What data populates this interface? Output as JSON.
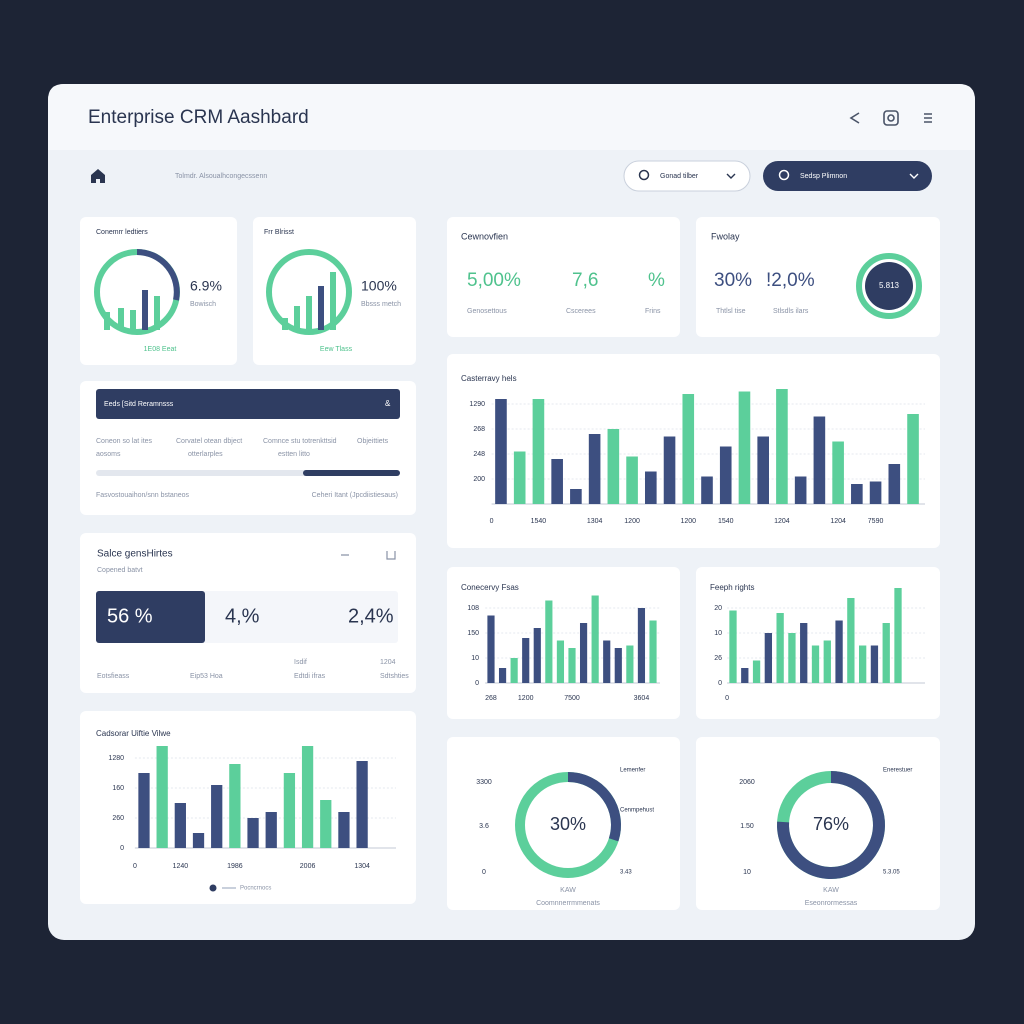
{
  "header": {
    "title": "Enterprise CRM Aashbard"
  },
  "toolbar": {
    "breadcrumb": "Tolmdr. Alsoualhcongecssenn",
    "filter": "Gonad tilber",
    "search": "Sedsp Plimnon"
  },
  "gauge_left": {
    "title": "Conemrr ledtiers",
    "value": "6.9%",
    "caption": "Bowisch",
    "footer": "1E08 Eeat"
  },
  "gauge_right": {
    "title": "Frr Blrisst",
    "value": "100%",
    "caption": "Bbsss metch",
    "footer": "Eew Tlass"
  },
  "task_panel": {
    "header": "Eeds [Sitd Reramnsss",
    "symbol": "&",
    "columns": [
      [
        "Coneon so lat ites",
        "aosoms"
      ],
      [
        "Corvatel otean dbject",
        "otterlarples"
      ],
      [
        "Comnce stu totrenkttsid",
        "estten litto"
      ],
      [
        "Objeittiets"
      ]
    ],
    "footer": [
      "Fasvostouaihon/snn bstaneos",
      "Ceheri Itant (Jpcdiistiesaus)"
    ]
  },
  "sales_segments": {
    "title": "Salce gensHirtes",
    "subtitle": "Copened batvt",
    "segments": [
      "56 %",
      "4,%",
      "2,4%"
    ],
    "labels": [
      "Eotsfieass",
      "Eip53 Hoa",
      "Isdif",
      "Edtdi ifras",
      "1204",
      "Sdtshties"
    ]
  },
  "overview": {
    "title": "Cewnovfien",
    "values": [
      "5,00%",
      "7,6",
      "%"
    ],
    "labels": [
      "Genosettous",
      "Cscerees",
      "Frins"
    ]
  },
  "weekly": {
    "title": "Fwolay",
    "values": [
      "30%",
      "!2,0%"
    ],
    "labels": [
      "Thtlsl tise",
      "Stlsdls ilars"
    ],
    "badge": "5.813"
  },
  "chart_data": [
    {
      "type": "bar",
      "title": "Cadsorar Uiftie Vilwe",
      "x_start_label": "0",
      "legend_label": "Pocncrnocs",
      "categories": [
        null,
        null,
        "1240",
        null,
        null,
        "1986",
        null,
        null,
        null,
        "2006",
        null,
        null,
        "1304"
      ],
      "values": [
        2.5,
        3.4,
        1.5,
        0.5,
        2.1,
        2.8,
        1.0,
        1.2,
        2.5,
        3.4,
        1.6,
        1.2,
        2.9
      ],
      "colors": [
        "#3d4f80",
        "#5ccf9b",
        "#3d4f80",
        "#3d4f80",
        "#3d4f80",
        "#5ccf9b",
        "#3d4f80",
        "#3d4f80",
        "#5ccf9b",
        "#5ccf9b",
        "#5ccf9b",
        "#3d4f80",
        "#3d4f80"
      ],
      "ylim": [
        0,
        3.5
      ],
      "yticks": [
        0,
        {
          "value": 1,
          "label": "260"
        },
        {
          "value": 2,
          "label": "160"
        },
        {
          "value": 3,
          "label": "1280"
        }
      ],
      "grid": true
    },
    {
      "type": "bar",
      "title": "Casterravy hels",
      "x_start_label": "0",
      "categories": [
        null,
        null,
        "1540",
        null,
        null,
        "1304",
        null,
        "1200",
        null,
        null,
        "1200",
        null,
        "1540",
        null,
        null,
        "1204",
        null,
        null,
        "1204",
        null,
        "7590",
        null,
        null
      ],
      "values": [
        4.2,
        2.1,
        4.2,
        1.8,
        0.6,
        2.8,
        3.0,
        1.9,
        1.3,
        2.7,
        4.4,
        1.1,
        2.3,
        4.5,
        2.7,
        4.6,
        1.1,
        3.5,
        2.5,
        0.8,
        0.9,
        1.6,
        3.6
      ],
      "colors": [
        "#3d4f80",
        "#5ccf9b",
        "#5ccf9b",
        "#3d4f80",
        "#3d4f80",
        "#3d4f80",
        "#5ccf9b",
        "#5ccf9b",
        "#3d4f80",
        "#3d4f80",
        "#5ccf9b",
        "#3d4f80",
        "#3d4f80",
        "#5ccf9b",
        "#3d4f80",
        "#5ccf9b",
        "#3d4f80",
        "#3d4f80",
        "#5ccf9b",
        "#3d4f80",
        "#3d4f80",
        "#3d4f80",
        "#5ccf9b"
      ],
      "ylim": [
        0,
        4.7
      ],
      "yticks": [
        {
          "value": 1,
          "label": "200"
        },
        {
          "value": 2,
          "label": "248"
        },
        {
          "value": 3,
          "label": "268"
        },
        {
          "value": 4,
          "label": "1290"
        }
      ],
      "grid": true
    },
    {
      "type": "bar",
      "title": "Conecervy Fsas",
      "categories": [
        "268",
        null,
        null,
        "1200",
        null,
        null,
        null,
        "7500",
        null,
        null,
        null,
        null,
        null,
        "3604",
        null
      ],
      "values": [
        2.7,
        0.6,
        1.0,
        1.8,
        2.2,
        3.3,
        1.7,
        1.4,
        2.4,
        3.5,
        1.7,
        1.4,
        1.5,
        3.0,
        2.5
      ],
      "colors": [
        "#3d4f80",
        "#3d4f80",
        "#5ccf9b",
        "#3d4f80",
        "#3d4f80",
        "#5ccf9b",
        "#5ccf9b",
        "#5ccf9b",
        "#3d4f80",
        "#5ccf9b",
        "#3d4f80",
        "#3d4f80",
        "#5ccf9b",
        "#3d4f80",
        "#5ccf9b"
      ],
      "ylim": [
        0,
        3.6
      ],
      "yticks": [
        0,
        {
          "value": 1,
          "label": "10"
        },
        {
          "value": 2,
          "label": "150"
        },
        {
          "value": 3,
          "label": "108"
        }
      ],
      "grid": true
    },
    {
      "type": "bar",
      "title": "Feeph rights",
      "x_start_label": "0",
      "values": [
        2.9,
        0.6,
        0.9,
        2.0,
        2.8,
        2.0,
        2.4,
        1.5,
        1.7,
        2.5,
        3.4,
        1.5,
        1.5,
        2.4,
        3.8
      ],
      "colors": [
        "#5ccf9b",
        "#3d4f80",
        "#5ccf9b",
        "#3d4f80",
        "#5ccf9b",
        "#5ccf9b",
        "#3d4f80",
        "#5ccf9b",
        "#5ccf9b",
        "#3d4f80",
        "#5ccf9b",
        "#5ccf9b",
        "#3d4f80",
        "#5ccf9b",
        "#5ccf9b"
      ],
      "ylim": [
        0,
        4
      ],
      "yticks": [
        0,
        {
          "value": 1,
          "label": "26"
        },
        {
          "value": 2,
          "label": "10"
        },
        {
          "value": 3,
          "label": "20"
        }
      ],
      "grid": true
    },
    {
      "type": "donut",
      "values": [
        30
      ],
      "value_labels": [
        "30%"
      ],
      "colors": [
        "#3d4f80",
        "#5ccf9b"
      ],
      "left_labels": [
        "3300",
        "3.6",
        "0"
      ],
      "right_labels": [
        "Lemenfer",
        "Cenmpehust",
        "3.43"
      ],
      "footer": [
        "KAW",
        "Coomnnerrmmenats"
      ]
    },
    {
      "type": "donut",
      "values": [
        76
      ],
      "value_labels": [
        "76%"
      ],
      "colors": [
        "#3d4f80",
        "#5ccf9b"
      ],
      "left_labels": [
        "2060",
        "1.50",
        "10"
      ],
      "right_labels": [
        "Enerestuer",
        "5.3.05"
      ],
      "footer": [
        "KAW",
        "Eseonrormessas"
      ]
    }
  ]
}
